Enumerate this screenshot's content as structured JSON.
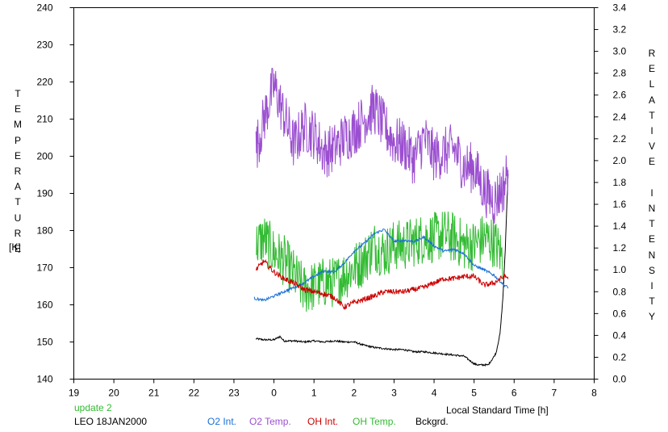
{
  "chart_data": {
    "type": "line",
    "title": "",
    "xlabel": "Local Standard Time [h]",
    "ylabel_left": "TEMPERATURE",
    "ylabel_left_unit": "[K]",
    "ylabel_right": "RELATIVE INTENSITY",
    "x_ticks": [
      "19",
      "20",
      "21",
      "22",
      "23",
      "0",
      "1",
      "2",
      "3",
      "4",
      "5",
      "6",
      "7",
      "8"
    ],
    "ylim_left": [
      140,
      240
    ],
    "y_ticks_left": [
      "240",
      "230",
      "220",
      "210",
      "200",
      "190",
      "180",
      "170",
      "160",
      "150",
      "140"
    ],
    "ylim_right": [
      0.0,
      3.4
    ],
    "y_ticks_right": [
      "3.4",
      "3.2",
      "3.0",
      "2.8",
      "2.6",
      "2.4",
      "2.2",
      "2.0",
      "1.8",
      "1.6",
      "1.4",
      "1.2",
      "1.0",
      "0.8",
      "0.6",
      "0.4",
      "0.2",
      "0.0"
    ],
    "grid": false,
    "legend_position": "bottom",
    "update_text": "update 2",
    "station_date": "LEO 18JAN2000",
    "series": [
      {
        "name": "O2 Int.",
        "axis": "right",
        "color": "#1a6fd6",
        "x": [
          -0.5,
          -0.25,
          0.0,
          0.25,
          0.5,
          0.75,
          1.0,
          1.25,
          1.5,
          1.75,
          2.0,
          2.25,
          2.5,
          2.75,
          3.0,
          3.25,
          3.5,
          3.75,
          4.0,
          4.25,
          4.5,
          4.75,
          5.0,
          5.25,
          5.5,
          5.75,
          5.85
        ],
        "y": [
          0.74,
          0.72,
          0.76,
          0.8,
          0.84,
          0.88,
          0.94,
          0.99,
          0.98,
          1.06,
          1.17,
          1.24,
          1.33,
          1.37,
          1.26,
          1.27,
          1.26,
          1.3,
          1.22,
          1.17,
          1.19,
          1.15,
          1.04,
          1.0,
          0.95,
          0.86,
          0.84
        ]
      },
      {
        "name": "O2 Temp.",
        "axis": "left",
        "color": "#9b4fd0",
        "x": [
          -0.45,
          -0.25,
          0.0,
          0.25,
          0.5,
          0.75,
          1.0,
          1.25,
          1.5,
          1.75,
          2.0,
          2.25,
          2.5,
          2.75,
          3.0,
          3.25,
          3.5,
          3.75,
          4.0,
          4.25,
          4.5,
          4.75,
          5.0,
          5.25,
          5.5,
          5.75,
          5.85
        ],
        "y": [
          202,
          210,
          219,
          211,
          203,
          208,
          206,
          201,
          202,
          205,
          207,
          210,
          213,
          208,
          204,
          203,
          199,
          205,
          200,
          201,
          202,
          197,
          197,
          191,
          188,
          192,
          197
        ],
        "noise": 7
      },
      {
        "name": "OH Int.",
        "axis": "right",
        "color": "#cc0000",
        "x": [
          -0.45,
          -0.25,
          0.0,
          0.25,
          0.5,
          0.75,
          1.0,
          1.25,
          1.5,
          1.75,
          2.0,
          2.25,
          2.5,
          2.75,
          3.0,
          3.25,
          3.5,
          3.75,
          4.0,
          4.25,
          4.5,
          4.75,
          5.0,
          5.25,
          5.5,
          5.75,
          5.85
        ],
        "y": [
          1.0,
          1.08,
          0.98,
          0.92,
          0.88,
          0.82,
          0.8,
          0.78,
          0.75,
          0.66,
          0.7,
          0.73,
          0.76,
          0.8,
          0.8,
          0.8,
          0.82,
          0.84,
          0.88,
          0.92,
          0.92,
          0.94,
          0.94,
          0.86,
          0.88,
          0.94,
          0.93
        ],
        "noise": 0.025
      },
      {
        "name": "OH Temp.",
        "axis": "left",
        "color": "#33bb33",
        "x": [
          -0.45,
          -0.25,
          0.0,
          0.25,
          0.5,
          0.75,
          1.0,
          1.25,
          1.5,
          1.75,
          2.0,
          2.25,
          2.5,
          2.75,
          3.0,
          3.25,
          3.5,
          3.75,
          4.0,
          4.25,
          4.5,
          4.75,
          5.0,
          5.25,
          5.5,
          5.75
        ],
        "y": [
          176,
          178,
          174,
          172,
          168,
          164,
          165,
          166,
          166,
          168,
          170,
          172,
          176,
          174,
          176,
          176,
          177,
          178,
          178,
          179,
          178,
          176,
          176,
          178,
          177,
          172
        ],
        "noise": 7
      },
      {
        "name": "Bckgrd.",
        "axis": "right",
        "color": "#000000",
        "x": [
          -0.45,
          -0.25,
          0.0,
          0.15,
          0.25,
          0.5,
          0.75,
          1.0,
          1.25,
          1.5,
          1.75,
          2.0,
          2.25,
          2.5,
          2.75,
          3.0,
          3.25,
          3.5,
          3.75,
          4.0,
          4.25,
          4.5,
          4.75,
          5.0,
          5.1,
          5.2,
          5.35,
          5.45,
          5.55,
          5.65,
          5.72,
          5.78,
          5.83,
          5.86
        ],
        "y": [
          0.37,
          0.36,
          0.36,
          0.39,
          0.35,
          0.35,
          0.34,
          0.35,
          0.34,
          0.35,
          0.34,
          0.34,
          0.31,
          0.29,
          0.28,
          0.27,
          0.27,
          0.25,
          0.25,
          0.24,
          0.23,
          0.22,
          0.21,
          0.14,
          0.13,
          0.13,
          0.13,
          0.18,
          0.24,
          0.42,
          0.75,
          1.2,
          1.7,
          1.98
        ],
        "noise": 0.008
      }
    ]
  }
}
